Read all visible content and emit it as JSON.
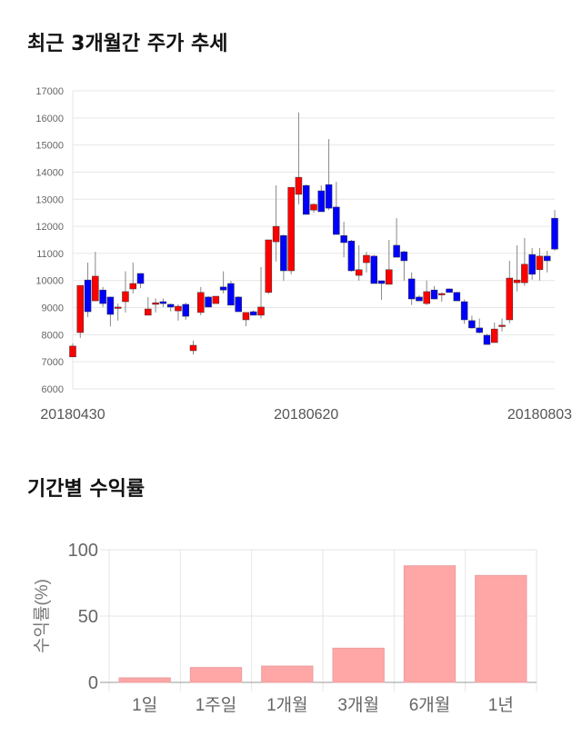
{
  "sections": {
    "price_title": "최근 3개월간 주가 추세",
    "return_title": "기간별 수익률"
  },
  "colors": {
    "up": "#ff0000",
    "down": "#0000ff",
    "wick": "#888888",
    "bar": "#ffa6a6",
    "grid": "#e6e6e6",
    "axis_text": "#666666"
  },
  "chart_data": [
    {
      "type": "candlestick",
      "title": "최근 3개월간 주가 추세",
      "ylim": [
        6000,
        17000
      ],
      "y_ticks": [
        "6000",
        "7000",
        "8000",
        "9000",
        "10000",
        "11000",
        "12000",
        "13000",
        "14000",
        "15000",
        "16000",
        "17000"
      ],
      "x_tick_labels": [
        {
          "index": 0,
          "label": "20180430"
        },
        {
          "index": 31,
          "label": "20180620"
        },
        {
          "index": 62,
          "label": "20180803"
        }
      ],
      "grid": true,
      "candles": [
        [
          7180,
          7680,
          7180,
          7580
        ],
        [
          8080,
          9820,
          7880,
          9820
        ],
        [
          10020,
          10660,
          8650,
          8850
        ],
        [
          9250,
          11060,
          9250,
          10160
        ],
        [
          9650,
          9760,
          9020,
          9150
        ],
        [
          9390,
          9400,
          8310,
          8750
        ],
        [
          9020,
          9150,
          8520,
          9020
        ],
        [
          9220,
          10340,
          8820,
          9590
        ],
        [
          9690,
          10660,
          9520,
          9890
        ],
        [
          10260,
          10260,
          9720,
          9890
        ],
        [
          8720,
          9390,
          8720,
          8950
        ],
        [
          9120,
          9340,
          8820,
          9180
        ],
        [
          9220,
          9340,
          9020,
          9150
        ],
        [
          9120,
          9150,
          8860,
          9020
        ],
        [
          8880,
          9120,
          8520,
          9050
        ],
        [
          9120,
          9180,
          8550,
          8680
        ],
        [
          7410,
          7780,
          7270,
          7610
        ],
        [
          8820,
          9760,
          8720,
          9560
        ],
        [
          9390,
          9420,
          9020,
          9020
        ],
        [
          9150,
          9420,
          9150,
          9420
        ],
        [
          9760,
          10340,
          9520,
          9650
        ],
        [
          9890,
          9990,
          9090,
          9090
        ],
        [
          9390,
          9420,
          8850,
          8850
        ],
        [
          8550,
          8820,
          8310,
          8820
        ],
        [
          8850,
          8900,
          8720,
          8720
        ],
        [
          8720,
          10500,
          8600,
          9020
        ],
        [
          9560,
          11500,
          9500,
          11500
        ],
        [
          11430,
          13510,
          10700,
          12000
        ],
        [
          11660,
          11700,
          9990,
          10360
        ],
        [
          10360,
          13440,
          10230,
          13440
        ],
        [
          13180,
          16200,
          12810,
          13810
        ],
        [
          13510,
          13540,
          12440,
          12440
        ],
        [
          12600,
          12850,
          12500,
          12810
        ],
        [
          13310,
          13510,
          12540,
          12540
        ],
        [
          13540,
          15220,
          12600,
          12670
        ],
        [
          12710,
          13640,
          11700,
          11700
        ],
        [
          11660,
          12170,
          10860,
          11400
        ],
        [
          11460,
          11500,
          10330,
          10360
        ],
        [
          10190,
          11300,
          9990,
          10400
        ],
        [
          10660,
          11060,
          10300,
          10930
        ],
        [
          10900,
          10950,
          9890,
          9890
        ],
        [
          9990,
          10000,
          9290,
          9890
        ],
        [
          9860,
          11500,
          9860,
          10400
        ],
        [
          11300,
          12300,
          10860,
          10860
        ],
        [
          11060,
          11100,
          10000,
          10730
        ],
        [
          10060,
          10300,
          9100,
          9320
        ],
        [
          9390,
          9450,
          9250,
          9250
        ],
        [
          9150,
          10000,
          9100,
          9590
        ],
        [
          9650,
          9800,
          9300,
          9320
        ],
        [
          9520,
          9560,
          9220,
          9520
        ],
        [
          9690,
          9700,
          9560,
          9560
        ],
        [
          9560,
          9580,
          9250,
          9250
        ],
        [
          9220,
          9300,
          8400,
          8550
        ],
        [
          8520,
          8700,
          8220,
          8250
        ],
        [
          8250,
          8600,
          8050,
          8080
        ],
        [
          7980,
          8030,
          7630,
          7640
        ],
        [
          7710,
          8450,
          7710,
          8210
        ],
        [
          8310,
          8600,
          8120,
          8350
        ],
        [
          8550,
          10730,
          8420,
          10090
        ],
        [
          9920,
          11300,
          9600,
          10020
        ],
        [
          9920,
          11570,
          9800,
          10600
        ],
        [
          10960,
          11200,
          10030,
          10230
        ],
        [
          10400,
          11200,
          10000,
          10900
        ],
        [
          10900,
          11100,
          10300,
          10730
        ],
        [
          12300,
          12600,
          11100,
          11160
        ]
      ]
    },
    {
      "type": "bar",
      "title": "기간별 수익률",
      "ylabel": "수익률(%)",
      "categories": [
        "1일",
        "1주일",
        "1개월",
        "3개월",
        "6개월",
        "1년"
      ],
      "values": [
        3.4,
        11.2,
        12.3,
        25.8,
        87.9,
        80.6
      ],
      "ylim": [
        0,
        100
      ],
      "y_ticks": [
        "0",
        "50",
        "100"
      ],
      "grid": true
    }
  ]
}
